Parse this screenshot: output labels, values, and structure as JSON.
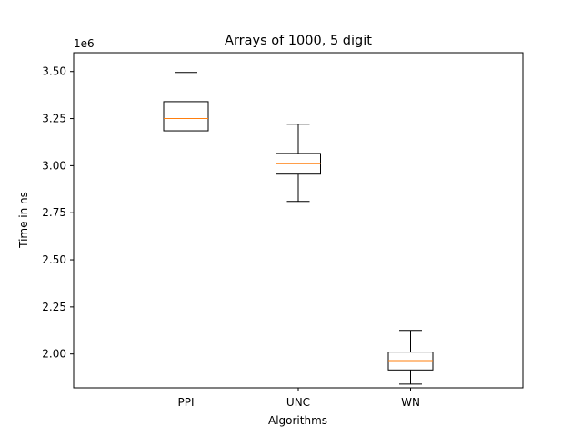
{
  "chart_data": {
    "type": "box",
    "title": "Arrays of 1000, 5 digit",
    "xlabel": "Algorithms",
    "ylabel": "Time in ns",
    "y_offset_label": "1e6",
    "ylim": [
      1.82,
      3.6
    ],
    "y_ticks": [
      2.0,
      2.25,
      2.5,
      2.75,
      3.0,
      3.25,
      3.5
    ],
    "y_tick_labels": [
      "2.00",
      "2.25",
      "2.50",
      "2.75",
      "3.00",
      "3.25",
      "3.50"
    ],
    "categories": [
      "PPI",
      "UNC",
      "WN"
    ],
    "boxes": [
      {
        "category": "PPI",
        "whisker_low": 3.115,
        "q1": 3.185,
        "median": 3.25,
        "q3": 3.34,
        "whisker_high": 3.495
      },
      {
        "category": "UNC",
        "whisker_low": 2.81,
        "q1": 2.955,
        "median": 3.01,
        "q3": 3.065,
        "whisker_high": 3.22
      },
      {
        "category": "WN",
        "whisker_low": 1.84,
        "q1": 1.915,
        "median": 1.965,
        "q3": 2.01,
        "whisker_high": 2.125
      }
    ],
    "colors": {
      "box": "#000000",
      "median": "#ff7f0e",
      "axes": "#000000"
    },
    "grid": false
  }
}
